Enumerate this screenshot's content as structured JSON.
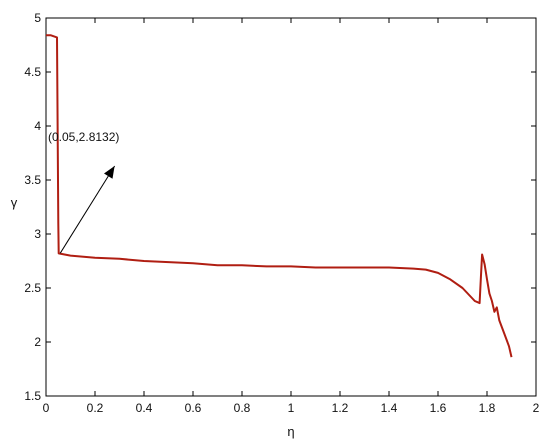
{
  "chart_data": {
    "type": "line",
    "title": "",
    "xlabel": "η",
    "ylabel": "γ",
    "xlim": [
      0,
      2
    ],
    "ylim": [
      1.5,
      5
    ],
    "xticks": [
      0,
      0.2,
      0.4,
      0.6,
      0.8,
      1,
      1.2,
      1.4,
      1.6,
      1.8,
      2
    ],
    "xtick_labels": [
      "0",
      "0.2",
      "0.4",
      "0.6",
      "0.8",
      "1",
      "1.2",
      "1.4",
      "1.6",
      "1.8",
      "2"
    ],
    "yticks": [
      1.5,
      2,
      2.5,
      3,
      3.5,
      4,
      4.5,
      5
    ],
    "ytick_labels": [
      "1.5",
      "2",
      "2.5",
      "3",
      "3.5",
      "4",
      "4.5",
      "5"
    ],
    "grid": false,
    "series": [
      {
        "color": "#b01e12",
        "points": [
          [
            0.0,
            4.84
          ],
          [
            0.02,
            4.84
          ],
          [
            0.045,
            4.82
          ],
          [
            0.05,
            3.1
          ],
          [
            0.052,
            2.82
          ],
          [
            0.1,
            2.8
          ],
          [
            0.2,
            2.78
          ],
          [
            0.3,
            2.77
          ],
          [
            0.4,
            2.75
          ],
          [
            0.5,
            2.74
          ],
          [
            0.6,
            2.73
          ],
          [
            0.7,
            2.71
          ],
          [
            0.8,
            2.71
          ],
          [
            0.9,
            2.7
          ],
          [
            1.0,
            2.7
          ],
          [
            1.1,
            2.69
          ],
          [
            1.2,
            2.69
          ],
          [
            1.3,
            2.69
          ],
          [
            1.4,
            2.69
          ],
          [
            1.5,
            2.68
          ],
          [
            1.55,
            2.67
          ],
          [
            1.6,
            2.64
          ],
          [
            1.65,
            2.58
          ],
          [
            1.7,
            2.5
          ],
          [
            1.75,
            2.38
          ],
          [
            1.77,
            2.36
          ],
          [
            1.775,
            2.6
          ],
          [
            1.78,
            2.81
          ],
          [
            1.79,
            2.72
          ],
          [
            1.8,
            2.58
          ],
          [
            1.81,
            2.45
          ],
          [
            1.82,
            2.38
          ],
          [
            1.83,
            2.28
          ],
          [
            1.84,
            2.32
          ],
          [
            1.85,
            2.2
          ],
          [
            1.87,
            2.08
          ],
          [
            1.89,
            1.96
          ],
          [
            1.9,
            1.86
          ]
        ]
      }
    ],
    "annotations": [
      {
        "text": "(0.05,2.8132)",
        "point": [
          0.05,
          2.8132
        ],
        "text_at": [
          0.2,
          3.9
        ],
        "arrow_head": [
          0.28,
          3.63
        ]
      }
    ]
  }
}
